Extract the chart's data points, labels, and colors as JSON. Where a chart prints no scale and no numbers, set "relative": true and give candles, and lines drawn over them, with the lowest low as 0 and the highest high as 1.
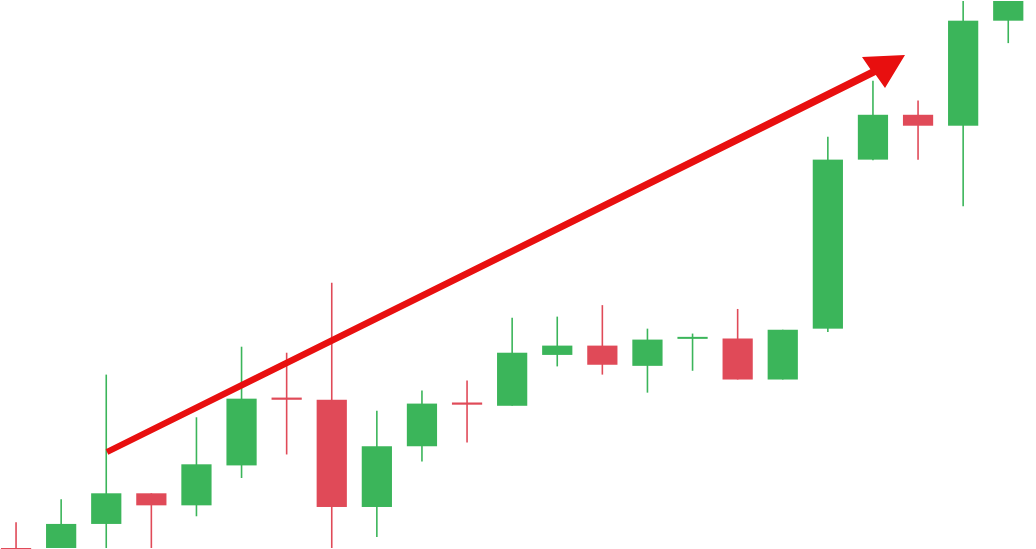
{
  "chart_data": {
    "type": "candlestick",
    "relative": true,
    "categories": [
      null,
      null,
      null,
      null,
      null,
      null,
      null,
      null,
      null,
      null,
      null,
      null,
      null,
      null,
      null,
      null,
      null,
      null,
      null,
      null,
      null,
      null,
      null
    ],
    "ohlc": [
      [
        0,
        0.047,
        0,
        0
      ],
      [
        0,
        0.089,
        0,
        0.044
      ],
      [
        0.044,
        0.317,
        0,
        0.1
      ],
      [
        0.1,
        0.1,
        0,
        0.078
      ],
      [
        0.078,
        0.239,
        0.058,
        0.153
      ],
      [
        0.151,
        0.368,
        0.128,
        0.273
      ],
      [
        0.275,
        0.357,
        0.171,
        0.271
      ],
      [
        0.271,
        0.485,
        0,
        0.075
      ],
      [
        0.075,
        0.251,
        0.02,
        0.186
      ],
      [
        0.186,
        0.288,
        0.158,
        0.264
      ],
      [
        0.266,
        0.306,
        0.193,
        0.262
      ],
      [
        0.26,
        0.421,
        0.26,
        0.357
      ],
      [
        0.353,
        0.423,
        0.332,
        0.37
      ],
      [
        0.37,
        0.444,
        0.317,
        0.335
      ],
      [
        0.333,
        0.401,
        0.284,
        0.381
      ],
      [
        0.384,
        0.392,
        0.324,
        0.386
      ],
      [
        0.383,
        0.437,
        0.308,
        0.308
      ],
      [
        0.308,
        0.399,
        0.308,
        0.399
      ],
      [
        0.401,
        0.752,
        0.395,
        0.71
      ],
      [
        0.71,
        0.854,
        0.709,
        0.792
      ],
      [
        0.792,
        0.818,
        0.71,
        0.772
      ],
      [
        0.772,
        1,
        0.625,
        0.964
      ],
      [
        0.964,
        1,
        0.923,
        1
      ]
    ],
    "colors": [
      "#e04a58",
      "#3bb55a",
      "#3bb55a",
      "#e04a58",
      "#3bb55a",
      "#3bb55a",
      "#e04a58",
      "#e04a58",
      "#3bb55a",
      "#3bb55a",
      "#e04a58",
      "#3bb55a",
      "#3bb55a",
      "#e04a58",
      "#3bb55a",
      "#3bb55a",
      "#e04a58",
      "#3bb55a",
      "#3bb55a",
      "#3bb55a",
      "#e04a58",
      "#3bb55a",
      "#3bb55a"
    ]
  }
}
